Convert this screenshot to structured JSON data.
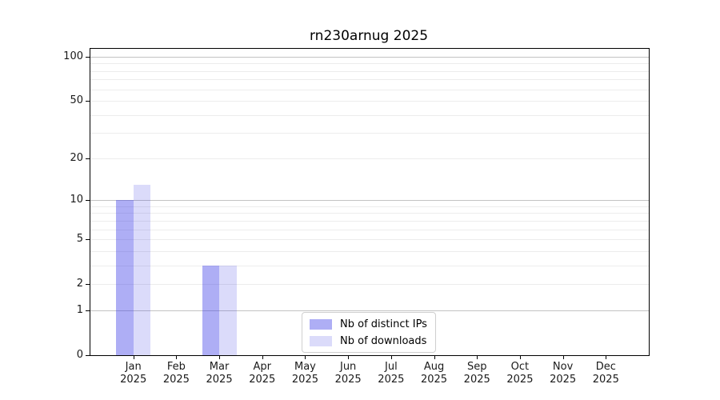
{
  "chart_data": {
    "type": "bar",
    "title": "rn230arnug 2025",
    "x_months": [
      "Jan",
      "Feb",
      "Mar",
      "Apr",
      "May",
      "Jun",
      "Jul",
      "Aug",
      "Sep",
      "Oct",
      "Nov",
      "Dec"
    ],
    "x_year": "2025",
    "series": [
      {
        "name": "Nb of distinct IPs",
        "color": "rgba(62,62,230,0.42)",
        "values": [
          10,
          0,
          3,
          0,
          0,
          0,
          0,
          0,
          0,
          0,
          0,
          0
        ]
      },
      {
        "name": "Nb of downloads",
        "color": "rgba(62,62,230,0.19)",
        "values": [
          13,
          0,
          3,
          0,
          0,
          0,
          0,
          0,
          0,
          0,
          0,
          0
        ]
      }
    ],
    "yscale": "log1p",
    "ylim": [
      0,
      113
    ],
    "ytick_values": [
      0,
      1,
      2,
      5,
      10,
      20,
      50,
      100
    ],
    "ytick_labels": [
      "0",
      "1",
      "2",
      "5",
      "10",
      "20",
      "50",
      "100"
    ],
    "major_gridline_values": [
      1,
      10,
      100
    ],
    "minor_gridline_values": [
      2,
      3,
      4,
      5,
      6,
      7,
      8,
      9,
      20,
      30,
      40,
      50,
      60,
      70,
      80,
      90
    ],
    "grid": true,
    "legend_position": "lower center",
    "colors": {
      "major_grid": "#c3c3c3",
      "minor_grid": "#ececec",
      "spine": "#000000",
      "text": "#1a1a1a",
      "background": "#ffffff"
    }
  }
}
